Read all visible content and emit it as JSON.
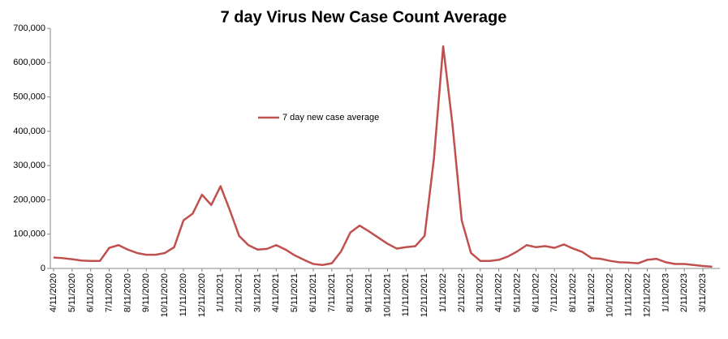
{
  "chart_data": {
    "type": "line",
    "title": "7 day Virus New Case Count Average",
    "categories": [
      "4/11/2020",
      null,
      "5/11/2020",
      null,
      "6/11/2020",
      null,
      "7/11/2020",
      null,
      "8/11/2020",
      null,
      "9/11/2020",
      null,
      "10/11/2020",
      null,
      "11/11/2020",
      null,
      "12/11/2020",
      null,
      "1/11/2021",
      null,
      "2/11/2021",
      null,
      "3/11/2021",
      null,
      "4/11/2021",
      null,
      "5/11/2021",
      null,
      "6/11/2021",
      null,
      "7/11/2021",
      null,
      "8/11/2021",
      null,
      "9/11/2021",
      null,
      "10/11/2021",
      null,
      "11/11/2021",
      null,
      "12/11/2021",
      null,
      "1/11/2022",
      null,
      "2/11/2022",
      null,
      "3/11/2022",
      null,
      "4/11/2022",
      null,
      "5/11/2022",
      null,
      "6/11/2022",
      null,
      "7/11/2022",
      null,
      "8/11/2022",
      null,
      "9/11/2022",
      null,
      "10/11/2022",
      null,
      "11/11/2022",
      null,
      "12/11/2022",
      null,
      "1/11/2023",
      null,
      "2/11/2023",
      null,
      "3/11/2023",
      null
    ],
    "series": [
      {
        "name": "7 day new case average",
        "color": "#c0504d",
        "values": [
          32000,
          30000,
          27000,
          23000,
          22000,
          22000,
          60000,
          68000,
          55000,
          45000,
          40000,
          40000,
          45000,
          62000,
          140000,
          160000,
          215000,
          185000,
          240000,
          170000,
          95000,
          68000,
          55000,
          57000,
          68000,
          55000,
          38000,
          25000,
          13000,
          10000,
          15000,
          50000,
          105000,
          125000,
          108000,
          90000,
          72000,
          58000,
          62000,
          65000,
          95000,
          320000,
          648000,
          420000,
          140000,
          45000,
          22000,
          22000,
          25000,
          35000,
          50000,
          68000,
          62000,
          65000,
          60000,
          70000,
          58000,
          48000,
          30000,
          28000,
          22000,
          18000,
          17000,
          15000,
          25000,
          28000,
          18000,
          13000,
          13000,
          10000,
          7000,
          5000
        ]
      }
    ],
    "ylim": [
      0,
      700000
    ],
    "yticks": [
      0,
      {
        "value": 100000,
        "label": "100,000"
      },
      {
        "value": 200000,
        "label": "200,000"
      },
      {
        "value": 300000,
        "label": "300,000"
      },
      {
        "value": 400000,
        "label": "400,000"
      },
      {
        "value": 500000,
        "label": "500,000"
      },
      {
        "value": 600000,
        "label": "600,000"
      },
      {
        "value": 700000,
        "label": "700,000"
      }
    ],
    "grid": false
  }
}
